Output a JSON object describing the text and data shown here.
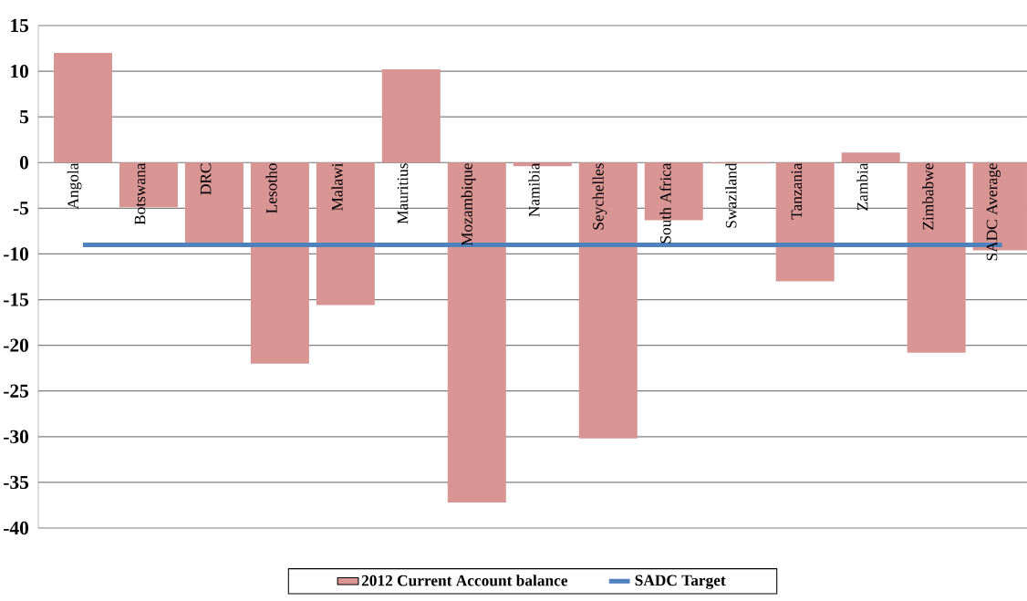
{
  "chart_data": {
    "type": "bar",
    "categories": [
      "Angola",
      "Botswana",
      "DRC",
      "Lesotho",
      "Malawi",
      "Mauritius",
      "Mozambique",
      "Namibia",
      "Seychelles",
      "South Africa",
      "Swaziland",
      "Tanzania",
      "Zambia",
      "Zimbabwe",
      "SADC Average"
    ],
    "series": [
      {
        "name": "2012 Current Account balance",
        "color": "#d99594",
        "values": [
          12.0,
          -4.9,
          -8.9,
          -22.0,
          -15.6,
          10.2,
          -37.2,
          -0.4,
          -30.2,
          -6.3,
          -0.1,
          -13.0,
          1.1,
          -20.8,
          -9.6
        ]
      },
      {
        "name": "SADC Target",
        "type": "line",
        "color": "#4f81bd",
        "values": [
          -9,
          -9,
          -9,
          -9,
          -9,
          -9,
          -9,
          -9,
          -9,
          -9,
          -9,
          -9,
          -9,
          -9,
          -9
        ]
      }
    ],
    "ylim": [
      -40,
      15
    ],
    "yticks": [
      -40,
      -35,
      -30,
      -25,
      -20,
      -15,
      -10,
      -5,
      0,
      5,
      10,
      15
    ],
    "grid": "y",
    "legend": "bottom",
    "marker": "none",
    "line_style": "solid"
  }
}
